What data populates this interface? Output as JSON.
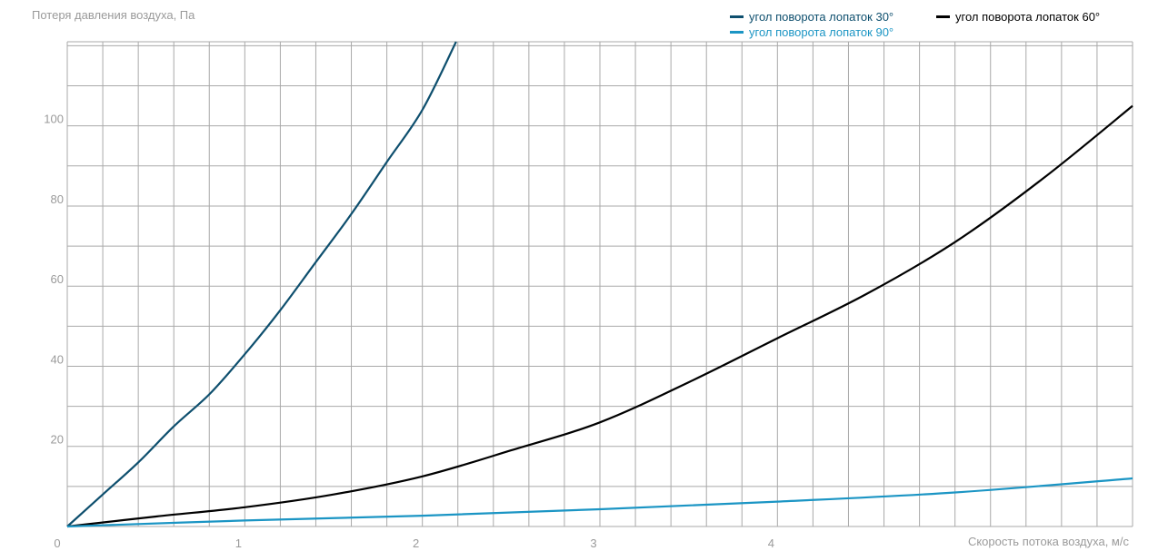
{
  "chart_data": {
    "type": "line",
    "ylabel": "Потеря давления воздуха, Па",
    "xlabel": "Скорость потока воздуха, м/с",
    "xlim": [
      0,
      6
    ],
    "ylim": [
      0,
      121
    ],
    "x_ticks": [
      0,
      1,
      2,
      3,
      4
    ],
    "x_tick_labels": [
      "0",
      "1",
      "2",
      "3",
      "4"
    ],
    "y_ticks": [
      20,
      40,
      60,
      80,
      100
    ],
    "y_tick_labels": [
      "20",
      "40",
      "60",
      "80",
      "100"
    ],
    "grid": true,
    "legend_position": "top-right",
    "series": [
      {
        "name": "угол поворота лопаток 30°",
        "color": "#0e4f6e",
        "x": [
          0,
          0.2,
          0.4,
          0.6,
          0.8,
          1.0,
          1.2,
          1.4,
          1.6,
          1.8,
          2.0,
          2.19
        ],
        "y": [
          0,
          8,
          16,
          25,
          33,
          43,
          54,
          66,
          78,
          91,
          104,
          121
        ]
      },
      {
        "name": "угол поворота лопаток 60°",
        "color": "#000000",
        "x": [
          0,
          0.5,
          1.0,
          1.5,
          2.0,
          2.5,
          3.0,
          3.5,
          4.0,
          4.5,
          5.0,
          5.5,
          6.0
        ],
        "y": [
          0,
          2.5,
          4.8,
          8,
          12.5,
          19,
          26,
          36,
          47,
          58,
          71,
          87,
          105
        ]
      },
      {
        "name": "угол поворота лопаток 90°",
        "color": "#1b95c4",
        "x": [
          0,
          1,
          2,
          3,
          4,
          5,
          6
        ],
        "y": [
          0,
          1.5,
          2.7,
          4.3,
          6.2,
          8.5,
          12
        ]
      }
    ]
  }
}
